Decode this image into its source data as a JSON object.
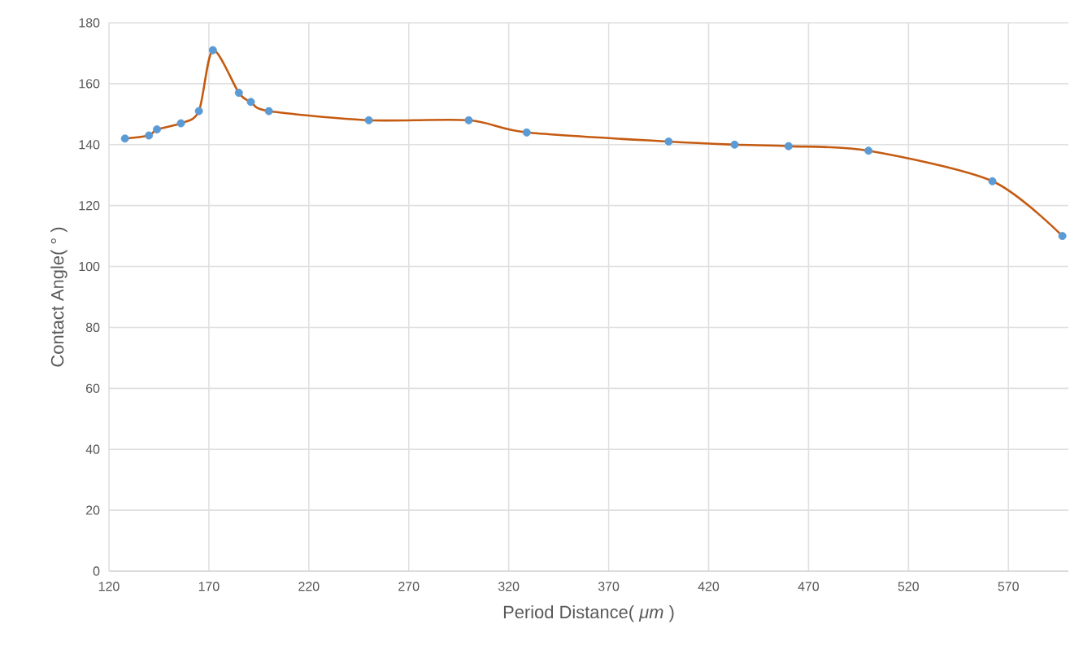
{
  "chart_data": {
    "type": "line",
    "xlabel": "Period Distance( *μm* )",
    "ylabel": "Contact Angle( ° )",
    "series": [
      {
        "color": "#c55a11",
        "marker": "none",
        "x": [
          128,
          140,
          144,
          156,
          165,
          172,
          185,
          191,
          200,
          250,
          300,
          329,
          400,
          433,
          460,
          500,
          562,
          597
        ],
        "values": [
          142,
          143,
          145,
          147,
          151,
          171,
          157,
          154,
          151,
          148,
          148,
          144,
          141,
          140,
          139.5,
          138,
          128,
          110
        ]
      },
      {
        "type": "scatter",
        "color": "#5b9bd5",
        "marker": "circle",
        "x": [
          128,
          140,
          144,
          156,
          165,
          172,
          185,
          191,
          200,
          250,
          300,
          329,
          400,
          433,
          460,
          500,
          562,
          597
        ],
        "values": [
          142,
          143,
          145,
          147,
          151,
          171,
          157,
          154,
          151,
          148,
          148,
          144,
          141,
          140,
          139.5,
          138,
          128,
          110
        ]
      }
    ],
    "xlim": [
      120,
      600
    ],
    "xticks": [
      120,
      170,
      220,
      270,
      320,
      370,
      420,
      470,
      520,
      570
    ],
    "ylim": [
      0,
      180
    ],
    "yticks": [
      0,
      20,
      40,
      60,
      80,
      100,
      120,
      140,
      160,
      180
    ],
    "grid": true
  }
}
